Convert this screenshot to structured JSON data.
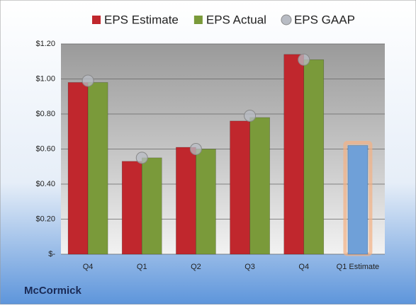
{
  "chart_data": {
    "type": "bar",
    "title": "McCormick",
    "categories": [
      "Q4",
      "Q1",
      "Q2",
      "Q3",
      "Q4",
      "Q1 Estimate"
    ],
    "series": [
      {
        "name": "EPS Estimate",
        "color": "#c0272d",
        "values": [
          0.98,
          0.53,
          0.61,
          0.76,
          1.14,
          0.62
        ]
      },
      {
        "name": "EPS Actual",
        "color": "#7a9a3a",
        "values": [
          0.98,
          0.55,
          0.6,
          0.78,
          1.11,
          null
        ]
      },
      {
        "name": "EPS GAAP",
        "color": "#b8bcc4",
        "type": "scatter",
        "values": [
          0.99,
          0.55,
          0.6,
          0.79,
          1.11,
          null
        ]
      }
    ],
    "highlight": {
      "color": "#6fa0d8",
      "glow": "#f4b183"
    },
    "ylim": [
      0,
      1.2
    ],
    "yticks": [
      {
        "value": 0,
        "label": "$-"
      },
      {
        "value": 0.2,
        "label": "$0.20"
      },
      {
        "value": 0.4,
        "label": "$0.40"
      },
      {
        "value": 0.6,
        "label": "$0.60"
      },
      {
        "value": 0.8,
        "label": "$0.80"
      },
      {
        "value": 1.0,
        "label": "$1.00"
      },
      {
        "value": 1.2,
        "label": "$1.20"
      }
    ],
    "grid": true,
    "legend": "top"
  }
}
